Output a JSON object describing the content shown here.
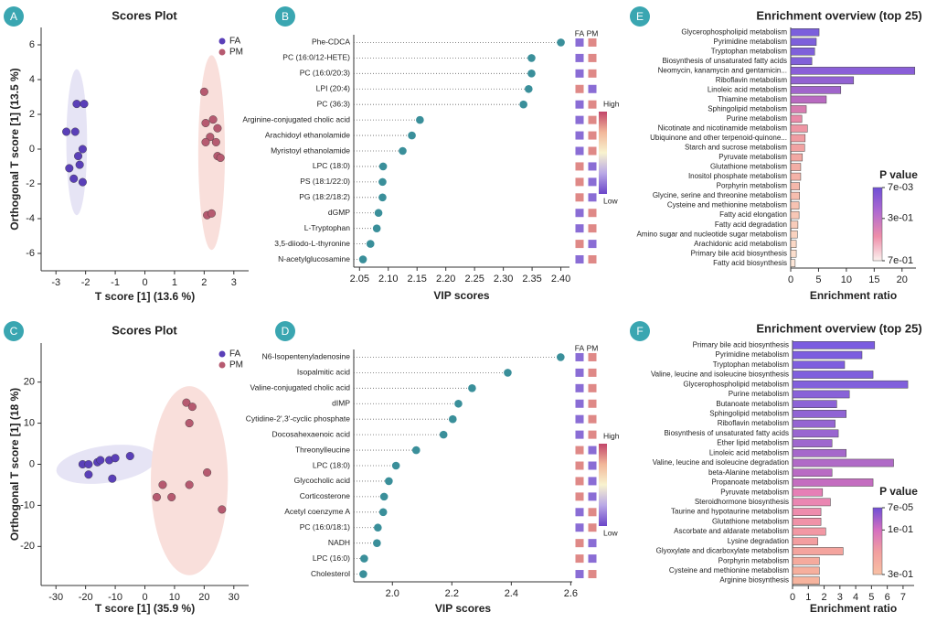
{
  "chart_data": [
    {
      "type": "scatter",
      "panel": "A",
      "title": "Scores Plot",
      "x_label": "T score [1] (13.6 %)",
      "y_label": "Orthogonal T score [1] (13.5 %)",
      "xlim": [
        -3.5,
        3.5
      ],
      "ylim": [
        -7,
        7
      ],
      "xticks": [
        -3,
        -2,
        -1,
        0,
        1,
        2,
        3
      ],
      "yticks": [
        -6,
        -4,
        -2,
        0,
        2,
        4,
        6
      ],
      "series": [
        {
          "name": "FA",
          "color": "#5a3fb8",
          "ellipse_color": "#e6e4f5",
          "x": [
            -2.3,
            -2.05,
            -2.65,
            -2.35,
            -2.1,
            -2.55,
            -2.2,
            -2.25,
            -2.4,
            -2.1
          ],
          "y": [
            2.6,
            2.6,
            1.0,
            1.0,
            0.0,
            -1.1,
            -0.9,
            -0.4,
            -1.7,
            -1.9
          ],
          "ellipse": {
            "cx": -2.3,
            "cy": 0.4,
            "rx": 0.35,
            "ry": 4.2,
            "angle": 0
          }
        },
        {
          "name": "PM",
          "color": "#b65a70",
          "ellipse_color": "#f9dfdb",
          "x": [
            2.0,
            2.05,
            2.3,
            2.45,
            2.2,
            2.05,
            2.4,
            2.45,
            2.55,
            2.1,
            2.25
          ],
          "y": [
            3.3,
            1.5,
            1.7,
            1.2,
            0.7,
            0.4,
            0.4,
            -0.4,
            -0.5,
            -3.8,
            -3.7
          ],
          "ellipse": {
            "cx": 2.25,
            "cy": -0.2,
            "rx": 0.45,
            "ry": 5.6,
            "angle": 0
          }
        }
      ]
    },
    {
      "type": "dot",
      "panel": "B",
      "x_label": "VIP scores",
      "color": "#3a8f9a",
      "xlim": [
        2.04,
        2.415
      ],
      "xticks": [
        2.05,
        {
          "value": 2.1,
          "label": "2.10"
        },
        2.15,
        {
          "value": 2.2,
          "label": "2.20"
        },
        2.25,
        {
          "value": 2.3,
          "label": "2.30"
        },
        2.35,
        {
          "value": 2.4,
          "label": "2.40"
        }
      ],
      "categories": [
        "Phe-CDCA",
        "PC (16:0/12-HETE)",
        "PC (16:0/20:3)",
        "LPI (20:4)",
        "PC (36:3)",
        "Arginine-conjugated cholic acid",
        "Arachidoyl ethanolamide",
        "Myristoyl ethanolamide",
        "LPC (18:0)",
        "PS (18:1/22:0)",
        "PG (18:2/18:2)",
        "dGMP",
        "L-Tryptophan",
        "3,5-diiodo-L-thyronine",
        "N-acetylglucosamine"
      ],
      "values": [
        2.4,
        2.349,
        2.349,
        2.344,
        2.335,
        2.155,
        2.141,
        2.125,
        2.091,
        2.09,
        2.09,
        2.083,
        2.08,
        2.069,
        2.056
      ],
      "heatmap_columns": [
        "FA",
        "PM"
      ],
      "heatmap": [
        [
          0.1,
          0.85
        ],
        [
          0.1,
          0.85
        ],
        [
          0.1,
          0.85
        ],
        [
          0.85,
          0.1
        ],
        [
          0.1,
          0.85
        ],
        [
          0.1,
          0.85
        ],
        [
          0.1,
          0.85
        ],
        [
          0.1,
          0.85
        ],
        [
          0.85,
          0.1
        ],
        [
          0.85,
          0.1
        ],
        [
          0.85,
          0.1
        ],
        [
          0.1,
          0.85
        ],
        [
          0.1,
          0.85
        ],
        [
          0.85,
          0.1
        ],
        [
          0.1,
          0.85
        ]
      ],
      "colorbar": {
        "high": "High",
        "low": "Low",
        "colors": [
          "#c2456a",
          "#f2b79a",
          "#f8f3cf",
          "#b9a8e6",
          "#6a45c9"
        ]
      }
    },
    {
      "type": "bar",
      "panel": "E",
      "title": "Enrichment overview (top 25)",
      "x_label": "Enrichment ratio",
      "xlim": [
        0,
        22.5
      ],
      "xticks": [
        0,
        5,
        10,
        15,
        20
      ],
      "categories": [
        "Glycerophospholipid metabolism",
        "Pyrimidine metabolism",
        "Tryptophan metabolism",
        "Biosynthesis of unsaturated fatty acids",
        "Neomycin, kanamycin and gentamicin...",
        "Riboflavin metabolism",
        "Linoleic acid metabolism",
        "Thiamine metabolism",
        "Sphingolipid metabolism",
        "Purine metabolism",
        "Nicotinate and nicotinamide metabolism",
        "Ubiquinone and other terpenoid-quinone...",
        "Starch and sucrose metabolism",
        "Pyruvate metabolism",
        "Glutathione metabolism",
        "Inositol phosphate metabolism",
        "Porphyrin metabolism",
        "Glycine, serine and threonine metabolism",
        "Cysteine and methionine metabolism",
        "Fatty acid elongation",
        "Fatty acid degradation",
        "Amino sugar and nucleotide sugar metabolism",
        "Arachidonic acid metabolism",
        "Primary bile acid biosynthesis",
        "Fatty acid biosynthesis"
      ],
      "values": [
        5.1,
        4.6,
        4.3,
        3.8,
        22.3,
        11.3,
        9.0,
        6.4,
        2.8,
        2.0,
        3.0,
        2.6,
        2.5,
        2.1,
        1.8,
        1.8,
        1.6,
        1.6,
        1.5,
        1.5,
        1.3,
        1.2,
        1.0,
        1.0,
        0.8
      ],
      "colors": [
        "#7b5fdc",
        "#7d5fdb",
        "#7f60da",
        "#8160d9",
        "#8a5fd8",
        "#9262d2",
        "#a065cb",
        "#b86ac0",
        "#d77cb0",
        "#e98aa8",
        "#ee96a4",
        "#f09ca2",
        "#f1a2a2",
        "#f2a8a3",
        "#f3aea5",
        "#f4b3a8",
        "#f5b8ab",
        "#f6bdae",
        "#f7c2b2",
        "#f8c7b6",
        "#f9ccba",
        "#fad2bf",
        "#fbd8c6",
        "#fcdecd",
        "#fde6d8"
      ],
      "colorbar": {
        "title": "P value",
        "colors": [
          "#6f4fd6",
          "#b06ad0",
          "#ee8eaa",
          "#fbf1ee"
        ],
        "lim": [
          0.007,
          0.7
        ],
        "ticks": [
          {
            "value": 0.007,
            "label": "7e-03"
          },
          {
            "value": 0.3,
            "label": "3e-01"
          },
          {
            "value": 0.7,
            "label": "7e-01"
          }
        ]
      }
    },
    {
      "type": "scatter",
      "panel": "C",
      "title": "Scores Plot",
      "x_label": "T score [1] (35.9 %)",
      "y_label": "Orthogonal T score [1] (18 %)",
      "xlim": [
        -35,
        35
      ],
      "ylim": [
        -29.5,
        29.5
      ],
      "xticks": [
        -30,
        -20,
        -10,
        0,
        10,
        20,
        30
      ],
      "yticks": [
        -20,
        -10,
        0,
        10,
        20
      ],
      "series": [
        {
          "name": "FA",
          "color": "#5a3fb8",
          "ellipse_color": "#e6e4f5",
          "x": [
            -21,
            -19,
            -16,
            -15,
            -12,
            -10,
            -5,
            -19,
            -11
          ],
          "y": [
            0,
            0,
            0.5,
            1,
            1,
            1.5,
            2,
            -2.5,
            -3.5
          ],
          "ellipse": {
            "cx": -13,
            "cy": 0,
            "rx": 17,
            "ry": 4.5,
            "angle": -8
          }
        },
        {
          "name": "PM",
          "color": "#b65a70",
          "ellipse_color": "#f9dfdb",
          "x": [
            14,
            16,
            15,
            6,
            9,
            4,
            15,
            21,
            26
          ],
          "y": [
            15,
            14,
            10,
            -5,
            -8,
            -8,
            -5,
            -2,
            -11
          ],
          "ellipse": {
            "cx": 15,
            "cy": -4,
            "rx": 13,
            "ry": 23,
            "angle": 0
          }
        }
      ]
    },
    {
      "type": "dot",
      "panel": "D",
      "x_label": "VIP scores",
      "color": "#3a8f9a",
      "xlim": [
        1.87,
        2.605
      ],
      "xticks": [
        {
          "value": 2.0,
          "label": "2.0"
        },
        2.2,
        2.4,
        2.6
      ],
      "categories": [
        "N6-Isopentenyladenosine",
        "Isopalmitic acid",
        "Valine-conjugated cholic acid",
        "dIMP",
        "Cytidine-2',3'-cyclic phosphate",
        "Docosahexaenoic acid",
        "Threonylleucine",
        "LPC (18:0)",
        "Glycocholic acid",
        "Corticosterone",
        "Acetyl coenzyme A",
        "PC (16:0/18:1)",
        "NADH",
        "LPC (16:0)",
        "Cholesterol"
      ],
      "values": [
        2.566,
        2.388,
        2.268,
        2.222,
        2.203,
        2.172,
        2.08,
        2.012,
        1.988,
        1.972,
        1.969,
        1.951,
        1.948,
        1.905,
        1.902
      ],
      "heatmap_columns": [
        "FA",
        "PM"
      ],
      "heatmap": [
        [
          0.1,
          0.85
        ],
        [
          0.1,
          0.85
        ],
        [
          0.1,
          0.85
        ],
        [
          0.1,
          0.85
        ],
        [
          0.1,
          0.85
        ],
        [
          0.1,
          0.85
        ],
        [
          0.85,
          0.1
        ],
        [
          0.85,
          0.1
        ],
        [
          0.85,
          0.1
        ],
        [
          0.85,
          0.1
        ],
        [
          0.1,
          0.85
        ],
        [
          0.1,
          0.85
        ],
        [
          0.85,
          0.1
        ],
        [
          0.85,
          0.1
        ],
        [
          0.1,
          0.85
        ]
      ],
      "colorbar": {
        "high": "High",
        "low": "Low",
        "colors": [
          "#c2456a",
          "#f2b79a",
          "#f8f3cf",
          "#b9a8e6",
          "#6a45c9"
        ]
      }
    },
    {
      "type": "bar",
      "panel": "F",
      "title": "Enrichment overview (top 25)",
      "x_label": "Enrichment ratio",
      "xlim": [
        0,
        7.7
      ],
      "xticks": [
        0,
        1,
        2,
        3,
        4,
        5,
        6,
        7
      ],
      "categories": [
        "Primary bile acid biosynthesis",
        "Pyrimidine metabolism",
        "Tryptophan metabolism",
        "Valine, leucine and isoleucine biosynthesis",
        "Glycerophospholipid metabolism",
        "Purine metabolism",
        "Butanoate metabolism",
        "Sphingolipid metabolism",
        "Riboflavin metabolism",
        "Biosynthesis of unsaturated fatty acids",
        "Ether lipid metabolism",
        "Linoleic acid metabolism",
        "Valine, leucine and isoleucine degradation",
        "beta-Alanine metabolism",
        "Propanoate metabolism",
        "Pyruvate metabolism",
        "Steroidhormone biosynthesis",
        "Taurine and hypotaurine metabolism",
        "Glutathione metabolism",
        "Ascorbate and aldarate metabolism",
        "Lysine degradation",
        "Glyoxylate and dicarboxylate metabolism",
        "Porphyrin metabolism",
        "Cysteine and methionine metabolism",
        "Arginine biosynthesis"
      ],
      "values": [
        5.2,
        4.4,
        3.3,
        5.1,
        7.3,
        3.6,
        2.8,
        3.4,
        2.7,
        2.9,
        2.5,
        3.4,
        6.4,
        2.5,
        5.1,
        1.9,
        2.4,
        1.8,
        1.8,
        2.1,
        1.6,
        3.2,
        1.7,
        1.7,
        1.7
      ],
      "colors": [
        "#7b5ce0",
        "#7c5ddf",
        "#7e5ede",
        "#7f5fdd",
        "#8160dc",
        "#8862d8",
        "#8c63d6",
        "#9064d4",
        "#9565d2",
        "#9966d0",
        "#9e67ce",
        "#a568cb",
        "#b06ac7",
        "#b96bc4",
        "#c46dc0",
        "#e67fb6",
        "#ea86b2",
        "#ee8cad",
        "#f092a8",
        "#f298a4",
        "#f39ea0",
        "#f4a49e",
        "#f5aa9d",
        "#f6af9d",
        "#f7b49e"
      ],
      "colorbar": {
        "title": "P value",
        "colors": [
          "#6f4fd6",
          "#d56fc0",
          "#f2a0a0",
          "#f8c0a4"
        ],
        "lim": [
          7e-05,
          0.3
        ],
        "ticks": [
          {
            "value": 7e-05,
            "label": "7e-05"
          },
          {
            "value": 0.1,
            "label": "1e-01"
          },
          {
            "value": 0.3,
            "label": "3e-01"
          }
        ]
      }
    }
  ]
}
